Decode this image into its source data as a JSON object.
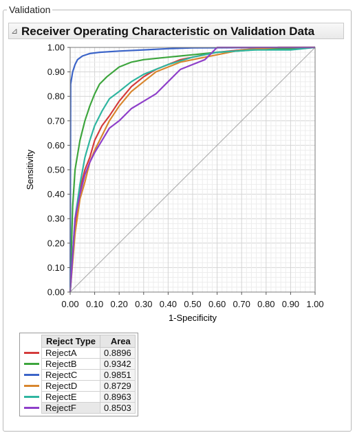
{
  "group": {
    "title": "Validation"
  },
  "header": {
    "toggle_symbol": "⊿",
    "title": "Receiver Operating Characteristic on Validation Data"
  },
  "chart_data": {
    "type": "line",
    "title": "Receiver Operating Characteristic on Validation Data",
    "xlabel": "1-Specificity",
    "ylabel": "Sensitivity",
    "xlim": [
      0,
      1
    ],
    "ylim": [
      0,
      1
    ],
    "x_ticks": [
      "0.00",
      "0.10",
      "0.20",
      "0.30",
      "0.40",
      "0.50",
      "0.60",
      "0.70",
      "0.80",
      "0.90",
      "1.00"
    ],
    "y_ticks": [
      "0.00",
      "0.10",
      "0.20",
      "0.30",
      "0.40",
      "0.50",
      "0.60",
      "0.70",
      "0.80",
      "0.90",
      "1.00"
    ],
    "grid": true,
    "diagonal_reference": true,
    "series": [
      {
        "name": "RejectA",
        "color": "#d43b3b",
        "points": [
          [
            0,
            0
          ],
          [
            0.02,
            0.28
          ],
          [
            0.04,
            0.42
          ],
          [
            0.06,
            0.5
          ],
          [
            0.08,
            0.55
          ],
          [
            0.1,
            0.62
          ],
          [
            0.13,
            0.68
          ],
          [
            0.16,
            0.72
          ],
          [
            0.2,
            0.78
          ],
          [
            0.25,
            0.84
          ],
          [
            0.3,
            0.88
          ],
          [
            0.35,
            0.91
          ],
          [
            0.4,
            0.93
          ],
          [
            0.45,
            0.95
          ],
          [
            0.5,
            0.96
          ],
          [
            0.6,
            0.98
          ],
          [
            0.7,
            0.99
          ],
          [
            0.85,
            1.0
          ],
          [
            1,
            1
          ]
        ]
      },
      {
        "name": "RejectB",
        "color": "#3da53d",
        "points": [
          [
            0,
            0
          ],
          [
            0.01,
            0.35
          ],
          [
            0.02,
            0.5
          ],
          [
            0.04,
            0.62
          ],
          [
            0.06,
            0.7
          ],
          [
            0.08,
            0.76
          ],
          [
            0.1,
            0.81
          ],
          [
            0.12,
            0.85
          ],
          [
            0.15,
            0.88
          ],
          [
            0.2,
            0.92
          ],
          [
            0.25,
            0.94
          ],
          [
            0.3,
            0.95
          ],
          [
            0.4,
            0.96
          ],
          [
            0.5,
            0.97
          ],
          [
            0.6,
            0.98
          ],
          [
            0.75,
            0.99
          ],
          [
            1,
            1
          ]
        ]
      },
      {
        "name": "RejectC",
        "color": "#3b64c8",
        "points": [
          [
            0,
            0
          ],
          [
            0.002,
            0.85
          ],
          [
            0.01,
            0.9
          ],
          [
            0.02,
            0.93
          ],
          [
            0.03,
            0.95
          ],
          [
            0.05,
            0.965
          ],
          [
            0.08,
            0.975
          ],
          [
            0.12,
            0.98
          ],
          [
            0.2,
            0.985
          ],
          [
            0.3,
            0.99
          ],
          [
            0.4,
            0.995
          ],
          [
            0.5,
            0.998
          ],
          [
            1,
            1
          ]
        ]
      },
      {
        "name": "RejectD",
        "color": "#d8862e",
        "points": [
          [
            0,
            0
          ],
          [
            0.02,
            0.24
          ],
          [
            0.04,
            0.38
          ],
          [
            0.06,
            0.45
          ],
          [
            0.08,
            0.53
          ],
          [
            0.1,
            0.58
          ],
          [
            0.13,
            0.64
          ],
          [
            0.16,
            0.7
          ],
          [
            0.2,
            0.76
          ],
          [
            0.25,
            0.82
          ],
          [
            0.3,
            0.86
          ],
          [
            0.35,
            0.9
          ],
          [
            0.4,
            0.92
          ],
          [
            0.45,
            0.94
          ],
          [
            0.5,
            0.95
          ],
          [
            0.6,
            0.97
          ],
          [
            0.7,
            0.99
          ],
          [
            0.85,
            1.0
          ],
          [
            1,
            1
          ]
        ]
      },
      {
        "name": "RejectE",
        "color": "#2fb5a0",
        "points": [
          [
            0,
            0
          ],
          [
            0.02,
            0.3
          ],
          [
            0.04,
            0.44
          ],
          [
            0.06,
            0.55
          ],
          [
            0.08,
            0.62
          ],
          [
            0.1,
            0.68
          ],
          [
            0.13,
            0.74
          ],
          [
            0.16,
            0.79
          ],
          [
            0.2,
            0.82
          ],
          [
            0.25,
            0.86
          ],
          [
            0.3,
            0.89
          ],
          [
            0.35,
            0.91
          ],
          [
            0.4,
            0.93
          ],
          [
            0.5,
            0.96
          ],
          [
            0.6,
            0.98
          ],
          [
            0.75,
            0.99
          ],
          [
            0.9,
            0.99
          ],
          [
            1,
            1
          ]
        ]
      },
      {
        "name": "RejectF",
        "color": "#8e3fc9",
        "points": [
          [
            0,
            0
          ],
          [
            0.02,
            0.3
          ],
          [
            0.04,
            0.4
          ],
          [
            0.06,
            0.48
          ],
          [
            0.08,
            0.53
          ],
          [
            0.1,
            0.57
          ],
          [
            0.13,
            0.62
          ],
          [
            0.16,
            0.67
          ],
          [
            0.2,
            0.7
          ],
          [
            0.25,
            0.75
          ],
          [
            0.3,
            0.78
          ],
          [
            0.35,
            0.81
          ],
          [
            0.4,
            0.86
          ],
          [
            0.45,
            0.91
          ],
          [
            0.5,
            0.93
          ],
          [
            0.55,
            0.95
          ],
          [
            0.58,
            0.98
          ],
          [
            0.6,
            1.0
          ],
          [
            1,
            1
          ]
        ]
      }
    ]
  },
  "legend": {
    "headers": {
      "type": "Reject Type",
      "area": "Area"
    },
    "rows": [
      {
        "name": "RejectA",
        "area": "0.8896",
        "color": "#d43b3b"
      },
      {
        "name": "RejectB",
        "area": "0.9342",
        "color": "#3da53d"
      },
      {
        "name": "RejectC",
        "area": "0.9851",
        "color": "#3b64c8"
      },
      {
        "name": "RejectD",
        "area": "0.8729",
        "color": "#d8862e"
      },
      {
        "name": "RejectE",
        "area": "0.8963",
        "color": "#2fb5a0"
      },
      {
        "name": "RejectF",
        "area": "0.8503",
        "color": "#8e3fc9"
      }
    ]
  }
}
